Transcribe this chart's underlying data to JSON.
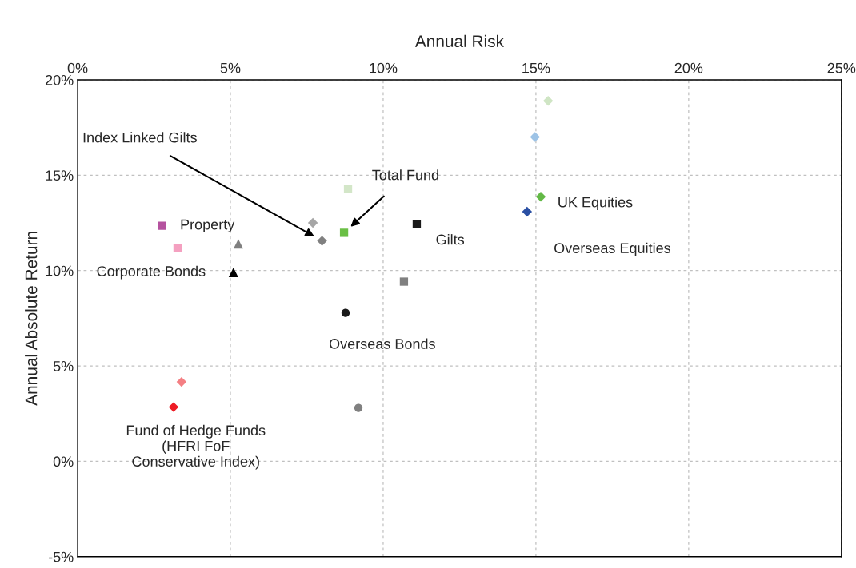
{
  "chart_data": {
    "type": "scatter",
    "xlabel": "Annual Risk",
    "ylabel": "Annual Absolute Return",
    "xlim": [
      0,
      25
    ],
    "ylim": [
      -5,
      20
    ],
    "xticks": [
      {
        "value": 0,
        "label": "0%"
      },
      {
        "value": 5,
        "label": "5%"
      },
      {
        "value": 10,
        "label": "10%"
      },
      {
        "value": 15,
        "label": "15%"
      },
      {
        "value": 20,
        "label": "20%"
      },
      {
        "value": 25,
        "label": "25%"
      }
    ],
    "yticks": [
      {
        "value": -5,
        "label": "-5%"
      },
      {
        "value": 0,
        "label": "0%"
      },
      {
        "value": 5,
        "label": "5%"
      },
      {
        "value": 10,
        "label": "10%"
      },
      {
        "value": 15,
        "label": "15%"
      },
      {
        "value": 20,
        "label": "20%"
      }
    ],
    "grid": true,
    "series": [
      {
        "name": "Property",
        "color": "#b5529f",
        "marker": "square",
        "x": [
          2.77
        ],
        "values": [
          12.35
        ]
      },
      {
        "color": "#f4a0c0",
        "marker": "square",
        "x": [
          3.27
        ],
        "values": [
          11.2
        ]
      },
      {
        "color": "#808080",
        "marker": "triangle",
        "x": [
          5.26
        ],
        "values": [
          11.4
        ]
      },
      {
        "name": "Corporate Bonds",
        "color": "#000000",
        "marker": "triangle",
        "x": [
          5.1
        ],
        "values": [
          9.9
        ]
      },
      {
        "color": "#a6a6a6",
        "marker": "diamond",
        "x": [
          7.7
        ],
        "values": [
          12.5
        ]
      },
      {
        "name": "Index Linked Gilts",
        "color": "#808080",
        "marker": "diamond",
        "x": [
          8.0
        ],
        "values": [
          11.56
        ]
      },
      {
        "name": "Total Fund",
        "color": "#6abf45",
        "marker": "square",
        "x": [
          8.72
        ],
        "values": [
          11.98
        ]
      },
      {
        "color": "#d3e6c8",
        "marker": "square",
        "x": [
          8.85
        ],
        "values": [
          14.3
        ]
      },
      {
        "name": "Gilts",
        "color": "#1a1a1a",
        "marker": "square",
        "x": [
          11.1
        ],
        "values": [
          12.43
        ]
      },
      {
        "color": "#808080",
        "marker": "square",
        "x": [
          10.68
        ],
        "values": [
          9.42
        ]
      },
      {
        "name": "Overseas Bonds",
        "color": "#1a1a1a",
        "marker": "circle",
        "x": [
          8.77
        ],
        "values": [
          7.78
        ]
      },
      {
        "color": "#808080",
        "marker": "circle",
        "x": [
          9.19
        ],
        "values": [
          2.8
        ]
      },
      {
        "color": "#f47f83",
        "marker": "diamond",
        "x": [
          3.4
        ],
        "values": [
          4.16
        ]
      },
      {
        "name": "Fund of Hedge Funds\n(HFRI FoF\nConservative Index)",
        "color": "#ee1c25",
        "marker": "diamond",
        "x": [
          3.14
        ],
        "values": [
          2.84
        ]
      },
      {
        "color": "#cfe5c4",
        "marker": "diamond",
        "x": [
          15.4
        ],
        "values": [
          18.9
        ]
      },
      {
        "color": "#9dc3e6",
        "marker": "diamond",
        "x": [
          14.97
        ],
        "values": [
          17.0
        ]
      },
      {
        "name": "UK Equities",
        "color": "#63b946",
        "marker": "diamond",
        "x": [
          15.16
        ],
        "values": [
          13.87
        ]
      },
      {
        "name": "Overseas Equities",
        "color": "#2a4fa3",
        "marker": "diamond",
        "x": [
          14.71
        ],
        "values": [
          13.09
        ]
      }
    ]
  }
}
